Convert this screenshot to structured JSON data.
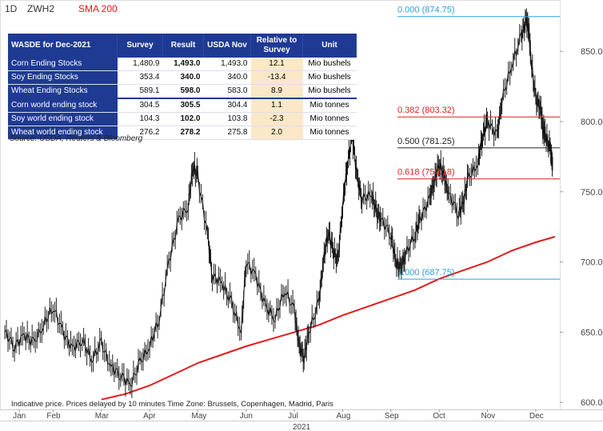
{
  "header": {
    "interval": "1D",
    "symbol": "ZWH2",
    "indicator": "SMA 200"
  },
  "table": {
    "columns": [
      "WASDE for Dec-2021",
      "Survey",
      "Result",
      "USDA Nov",
      "Relative to Survey",
      "Unit"
    ],
    "rows": [
      {
        "name": "Corn Ending Stocks",
        "survey": "1,480.9",
        "result": "1,493.0",
        "usda_nov": "1,493.0",
        "relative": "12.1",
        "unit": "Mio bushels"
      },
      {
        "name": "Soy Ending Stocks",
        "survey": "353.4",
        "result": "340.0",
        "usda_nov": "340.0",
        "relative": "-13.4",
        "unit": "Mio bushels"
      },
      {
        "name": "Wheat Ending Stocks",
        "survey": "589.1",
        "result": "598.0",
        "usda_nov": "583.0",
        "relative": "8.9",
        "unit": "Mio bushels"
      },
      {
        "name": "Corn world ending stock",
        "survey": "304.5",
        "result": "305.5",
        "usda_nov": "304.4",
        "relative": "1.1",
        "unit": "Mio tonnes"
      },
      {
        "name": "Soy world ending stock",
        "survey": "104.3",
        "result": "102.0",
        "usda_nov": "103.8",
        "relative": "-2.3",
        "unit": "Mio tonnes"
      },
      {
        "name": "Wheat world ending stock",
        "survey": "276.2",
        "result": "278.2",
        "usda_nov": "275.8",
        "relative": "2.0",
        "unit": "Mio tonnes"
      }
    ],
    "source": "Source: USDA, Reuters & Bloomberg"
  },
  "footer_note": "Indicative price. Prices delayed by 10 minutes    Time Zone: Brussels, Copenhagen, Madrid, Paris",
  "chart_data": {
    "type": "line",
    "ylim": [
      595,
      882
    ],
    "y_ticks": [
      600,
      650,
      700,
      750,
      800,
      850
    ],
    "y_tick_labels": [
      "600.00",
      "650.00",
      "700.00",
      "750.00",
      "800.00",
      "850.00"
    ],
    "x_range_months": [
      0,
      11.4
    ],
    "months": [
      {
        "label": "Jan",
        "pos": 0.3
      },
      {
        "label": "Feb",
        "pos": 1.0
      },
      {
        "label": "Mar",
        "pos": 2.0
      },
      {
        "label": "Apr",
        "pos": 3.0
      },
      {
        "label": "May",
        "pos": 4.0
      },
      {
        "label": "Jun",
        "pos": 5.0
      },
      {
        "label": "Jul",
        "pos": 6.0
      },
      {
        "label": "Aug",
        "pos": 7.0
      },
      {
        "label": "Sep",
        "pos": 8.0
      },
      {
        "label": "Oct",
        "pos": 9.0
      },
      {
        "label": "Nov",
        "pos": 10.0
      },
      {
        "label": "Dec",
        "pos": 11.0
      }
    ],
    "year_label": "2021",
    "price_series": {
      "name": "ZWH2",
      "color": "#111111",
      "points": [
        [
          0.0,
          650
        ],
        [
          0.2,
          640
        ],
        [
          0.4,
          648
        ],
        [
          0.6,
          642
        ],
        [
          0.8,
          655
        ],
        [
          1.0,
          668
        ],
        [
          1.2,
          650
        ],
        [
          1.4,
          638
        ],
        [
          1.6,
          645
        ],
        [
          1.8,
          630
        ],
        [
          2.0,
          642
        ],
        [
          2.2,
          625
        ],
        [
          2.4,
          620
        ],
        [
          2.6,
          612
        ],
        [
          2.8,
          628
        ],
        [
          3.0,
          640
        ],
        [
          3.2,
          660
        ],
        [
          3.4,
          700
        ],
        [
          3.6,
          730
        ],
        [
          3.8,
          740
        ],
        [
          3.9,
          768
        ],
        [
          4.0,
          760
        ],
        [
          4.2,
          720
        ],
        [
          4.3,
          690
        ],
        [
          4.5,
          685
        ],
        [
          4.7,
          670
        ],
        [
          4.9,
          650
        ],
        [
          5.0,
          700
        ],
        [
          5.2,
          690
        ],
        [
          5.4,
          668
        ],
        [
          5.6,
          660
        ],
        [
          5.8,
          680
        ],
        [
          6.0,
          665
        ],
        [
          6.1,
          640
        ],
        [
          6.2,
          632
        ],
        [
          6.3,
          650
        ],
        [
          6.5,
          670
        ],
        [
          6.6,
          700
        ],
        [
          6.7,
          722
        ],
        [
          6.8,
          708
        ],
        [
          6.9,
          700
        ],
        [
          7.0,
          740
        ],
        [
          7.1,
          770
        ],
        [
          7.2,
          790
        ],
        [
          7.3,
          760
        ],
        [
          7.4,
          745
        ],
        [
          7.6,
          748
        ],
        [
          7.7,
          735
        ],
        [
          7.8,
          730
        ],
        [
          8.0,
          720
        ],
        [
          8.1,
          700
        ],
        [
          8.2,
          695
        ],
        [
          8.3,
          705
        ],
        [
          8.5,
          720
        ],
        [
          8.6,
          730
        ],
        [
          8.8,
          745
        ],
        [
          8.9,
          758
        ],
        [
          9.0,
          770
        ],
        [
          9.1,
          760
        ],
        [
          9.2,
          748
        ],
        [
          9.4,
          735
        ],
        [
          9.5,
          742
        ],
        [
          9.6,
          760
        ],
        [
          9.8,
          770
        ],
        [
          9.9,
          790
        ],
        [
          10.0,
          800
        ],
        [
          10.2,
          790
        ],
        [
          10.3,
          815
        ],
        [
          10.5,
          840
        ],
        [
          10.7,
          860
        ],
        [
          10.8,
          872
        ],
        [
          10.85,
          868
        ],
        [
          10.9,
          845
        ],
        [
          11.0,
          815
        ],
        [
          11.1,
          810
        ],
        [
          11.15,
          795
        ],
        [
          11.2,
          790
        ],
        [
          11.3,
          780
        ],
        [
          11.35,
          770
        ]
      ]
    },
    "sma_series": {
      "name": "SMA 200",
      "color": "#e11b1b",
      "points": [
        [
          2.0,
          602
        ],
        [
          2.5,
          606
        ],
        [
          3.0,
          612
        ],
        [
          3.5,
          620
        ],
        [
          4.0,
          628
        ],
        [
          4.5,
          634
        ],
        [
          5.0,
          640
        ],
        [
          5.5,
          645
        ],
        [
          6.0,
          650
        ],
        [
          6.5,
          655
        ],
        [
          7.0,
          662
        ],
        [
          7.5,
          668
        ],
        [
          8.0,
          674
        ],
        [
          8.5,
          680
        ],
        [
          9.0,
          688
        ],
        [
          9.5,
          694
        ],
        [
          10.0,
          700
        ],
        [
          10.5,
          708
        ],
        [
          11.0,
          714
        ],
        [
          11.4,
          718
        ]
      ]
    },
    "fib_levels": [
      {
        "ratio_label": "0.000 (874.75)",
        "value": 874.75,
        "color": "#2aa0d8"
      },
      {
        "ratio_label": "0.382 (803.32)",
        "value": 803.32,
        "color": "#e11b1b"
      },
      {
        "ratio_label": "0.500 (781.25)",
        "value": 781.25,
        "color": "#222222"
      },
      {
        "ratio_label": "0.618 (759.18)",
        "value": 759.18,
        "color": "#e11b1b"
      },
      {
        "ratio_label": "1.000 (687.75)",
        "value": 687.75,
        "color": "#2aa0d8"
      }
    ]
  }
}
